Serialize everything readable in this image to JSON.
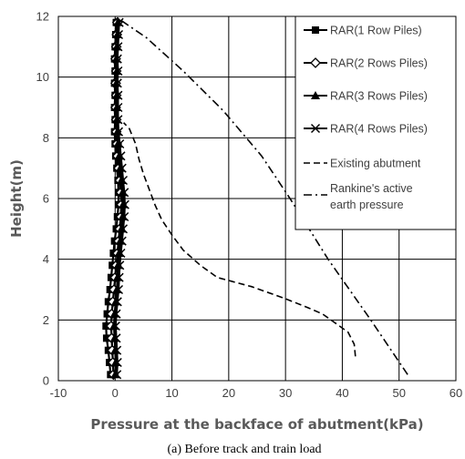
{
  "chart_data": {
    "type": "line",
    "xlabel": "Pressure at the backface of abutment(kPa)",
    "ylabel": "Height(m)",
    "caption": "(a) Before track and train load",
    "xlim": [
      -10,
      60
    ],
    "ylim": [
      0,
      12
    ],
    "x_ticks": [
      "-10",
      "0",
      "10",
      "20",
      "30",
      "40",
      "50",
      "60"
    ],
    "y_ticks": [
      "0",
      "2",
      "4",
      "6",
      "8",
      "10",
      "12"
    ],
    "grid": true,
    "legend_position": "top-right",
    "series": [
      {
        "name": "RAR(1 Row Piles)",
        "marker": "square",
        "style": "solid",
        "points": [
          [
            -0.8,
            0.2
          ],
          [
            -1,
            0.6
          ],
          [
            -1.2,
            1
          ],
          [
            -1.5,
            1.4
          ],
          [
            -1.6,
            1.8
          ],
          [
            -1.4,
            2.2
          ],
          [
            -1.2,
            2.6
          ],
          [
            -0.9,
            3
          ],
          [
            -0.7,
            3.4
          ],
          [
            -0.5,
            3.8
          ],
          [
            -0.3,
            4.2
          ],
          [
            -0.1,
            4.6
          ],
          [
            0.2,
            5
          ],
          [
            0.4,
            5.4
          ],
          [
            0.6,
            5.8
          ],
          [
            0.6,
            6.2
          ],
          [
            0.5,
            6.6
          ],
          [
            0.3,
            7
          ],
          [
            0.1,
            7.4
          ],
          [
            0,
            7.8
          ],
          [
            -0.1,
            8.2
          ],
          [
            0,
            8.6
          ],
          [
            -0.1,
            9
          ],
          [
            0,
            9.4
          ],
          [
            -0.1,
            9.8
          ],
          [
            0,
            10.2
          ],
          [
            -0.1,
            10.6
          ],
          [
            0,
            11
          ],
          [
            0.1,
            11.4
          ],
          [
            0.2,
            11.8
          ]
        ]
      },
      {
        "name": "RAR(2 Rows Piles)",
        "marker": "diamond",
        "style": "solid",
        "points": [
          [
            -0.3,
            0.2
          ],
          [
            -0.4,
            0.6
          ],
          [
            -0.5,
            1
          ],
          [
            -0.6,
            1.4
          ],
          [
            -0.7,
            1.8
          ],
          [
            -0.6,
            2.2
          ],
          [
            -0.4,
            2.6
          ],
          [
            -0.2,
            3
          ],
          [
            0,
            3.4
          ],
          [
            0.2,
            3.8
          ],
          [
            0.4,
            4.2
          ],
          [
            0.6,
            4.6
          ],
          [
            0.8,
            5
          ],
          [
            1,
            5.4
          ],
          [
            1.1,
            5.8
          ],
          [
            1,
            6.2
          ],
          [
            0.8,
            6.6
          ],
          [
            0.6,
            7
          ],
          [
            0.4,
            7.4
          ],
          [
            0.3,
            7.8
          ],
          [
            0.2,
            8.2
          ],
          [
            0.2,
            8.6
          ],
          [
            0.1,
            9
          ],
          [
            0.2,
            9.4
          ],
          [
            0.1,
            9.8
          ],
          [
            0.2,
            10.2
          ],
          [
            0.1,
            10.6
          ],
          [
            0.2,
            11
          ],
          [
            0.3,
            11.4
          ],
          [
            0.4,
            11.8
          ]
        ]
      },
      {
        "name": "RAR(3 Rows Piles)",
        "marker": "triangle",
        "style": "solid",
        "points": [
          [
            0,
            0.2
          ],
          [
            0.1,
            0.6
          ],
          [
            0,
            1
          ],
          [
            -0.1,
            1.4
          ],
          [
            -0.2,
            1.8
          ],
          [
            -0.1,
            2.2
          ],
          [
            0.1,
            2.6
          ],
          [
            0.3,
            3
          ],
          [
            0.4,
            3.4
          ],
          [
            0.5,
            3.8
          ],
          [
            0.7,
            4.2
          ],
          [
            0.9,
            4.6
          ],
          [
            1.1,
            5
          ],
          [
            1.3,
            5.4
          ],
          [
            1.4,
            5.8
          ],
          [
            1.3,
            6.2
          ],
          [
            1.1,
            6.6
          ],
          [
            0.9,
            7
          ],
          [
            0.7,
            7.4
          ],
          [
            0.5,
            7.8
          ],
          [
            0.4,
            8.2
          ],
          [
            0.3,
            8.6
          ],
          [
            0.3,
            9
          ],
          [
            0.3,
            9.4
          ],
          [
            0.2,
            9.8
          ],
          [
            0.3,
            10.2
          ],
          [
            0.2,
            10.6
          ],
          [
            0.3,
            11
          ],
          [
            0.4,
            11.4
          ],
          [
            0.5,
            11.8
          ]
        ]
      },
      {
        "name": "RAR(4 Rows Piles)",
        "marker": "x",
        "style": "solid",
        "points": [
          [
            0.3,
            0.2
          ],
          [
            0.4,
            0.6
          ],
          [
            0.3,
            1
          ],
          [
            0.2,
            1.4
          ],
          [
            0.1,
            1.8
          ],
          [
            0.2,
            2.2
          ],
          [
            0.4,
            2.6
          ],
          [
            0.6,
            3
          ],
          [
            0.7,
            3.4
          ],
          [
            0.8,
            3.8
          ],
          [
            1,
            4.2
          ],
          [
            1.2,
            4.6
          ],
          [
            1.4,
            5
          ],
          [
            1.6,
            5.4
          ],
          [
            1.7,
            5.8
          ],
          [
            1.6,
            6.2
          ],
          [
            1.4,
            6.6
          ],
          [
            1.2,
            7
          ],
          [
            1,
            7.4
          ],
          [
            0.8,
            7.8
          ],
          [
            0.6,
            8.2
          ],
          [
            0.5,
            8.6
          ],
          [
            0.5,
            9
          ],
          [
            0.5,
            9.4
          ],
          [
            0.4,
            9.8
          ],
          [
            0.5,
            10.2
          ],
          [
            0.4,
            10.6
          ],
          [
            0.5,
            11
          ],
          [
            0.6,
            11.4
          ],
          [
            0.7,
            11.8
          ]
        ]
      },
      {
        "name": "Existing abutment",
        "marker": "none",
        "style": "dashed",
        "points": [
          [
            42.3,
            0.8
          ],
          [
            42.1,
            1.2
          ],
          [
            41,
            1.6
          ],
          [
            38,
            2
          ],
          [
            36.5,
            2.2
          ],
          [
            34,
            2.4
          ],
          [
            30,
            2.7
          ],
          [
            24,
            3.1
          ],
          [
            18,
            3.4
          ],
          [
            15,
            3.8
          ],
          [
            12,
            4.3
          ],
          [
            10,
            4.8
          ],
          [
            8.2,
            5.3
          ],
          [
            7,
            5.8
          ],
          [
            6,
            6.3
          ],
          [
            5,
            6.8
          ],
          [
            4.2,
            7.3
          ],
          [
            3.6,
            7.8
          ],
          [
            2.5,
            8.3
          ],
          [
            1.5,
            8.5
          ]
        ]
      },
      {
        "name": "Rankine's active earth pressure",
        "marker": "none",
        "style": "dashdot",
        "points": [
          [
            51.5,
            0.2
          ],
          [
            45,
            2
          ],
          [
            37.5,
            4
          ],
          [
            30.8,
            6
          ],
          [
            25.8,
            7.4
          ],
          [
            19,
            8.9
          ],
          [
            12,
            10.2
          ],
          [
            5.5,
            11.3
          ],
          [
            0,
            12
          ]
        ]
      }
    ]
  }
}
